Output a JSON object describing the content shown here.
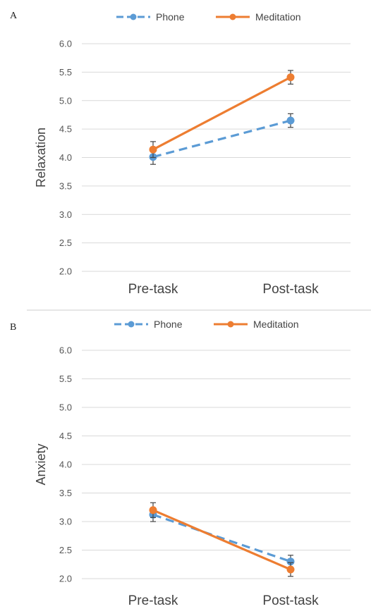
{
  "chart_data": [
    {
      "panel_label": "A",
      "type": "line",
      "categories": [
        "Pre-task",
        "Post-task"
      ],
      "ylabel": "Relaxation",
      "ylim": [
        2.0,
        6.0
      ],
      "yticks": [
        "2.0",
        "2.5",
        "3.0",
        "3.5",
        "4.0",
        "4.5",
        "5.0",
        "5.5",
        "6.0"
      ],
      "grid": true,
      "legend_position": "top",
      "series": [
        {
          "name": "Phone",
          "values": [
            4.01,
            4.65
          ],
          "error": [
            0.13,
            0.12
          ],
          "color": "#5b9bd5",
          "line_style": "dashed"
        },
        {
          "name": "Meditation",
          "values": [
            4.14,
            5.41
          ],
          "error": [
            0.14,
            0.12
          ],
          "color": "#ed7d31",
          "line_style": "solid"
        }
      ]
    },
    {
      "panel_label": "B",
      "type": "line",
      "categories": [
        "Pre-task",
        "Post-task"
      ],
      "ylabel": "Anxiety",
      "ylim": [
        2.0,
        6.0
      ],
      "yticks": [
        "2.0",
        "2.5",
        "3.0",
        "3.5",
        "4.0",
        "4.5",
        "5.0",
        "5.5",
        "6.0"
      ],
      "grid": true,
      "legend_position": "top",
      "series": [
        {
          "name": "Phone",
          "values": [
            3.12,
            2.3
          ],
          "error": [
            0.12,
            0.11
          ],
          "color": "#5b9bd5",
          "line_style": "dashed"
        },
        {
          "name": "Meditation",
          "values": [
            3.2,
            2.16
          ],
          "error": [
            0.13,
            0.12
          ],
          "color": "#ed7d31",
          "line_style": "solid"
        }
      ]
    }
  ]
}
